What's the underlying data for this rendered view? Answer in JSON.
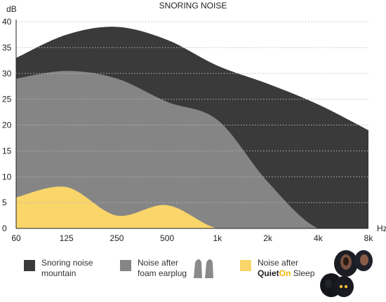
{
  "chart_data": {
    "type": "area",
    "title": "SNORING NOISE",
    "ylabel": "dB",
    "xlabel": "Hz",
    "x_categories": [
      "60",
      "125",
      "250",
      "500",
      "1k",
      "2k",
      "4k",
      "8k"
    ],
    "yticks": [
      "0",
      "5",
      "10",
      "15",
      "20",
      "25",
      "30",
      "35",
      "40"
    ],
    "ylim": [
      0,
      40
    ],
    "grid": true,
    "series": [
      {
        "name": "Snoring noise mountain",
        "color": "#3a3a3a",
        "x": [
          "60",
          "125",
          "250",
          "500",
          "1k",
          "2k",
          "4k",
          "8k"
        ],
        "values": [
          33,
          37.5,
          39,
          36.5,
          31.5,
          28,
          24,
          19
        ]
      },
      {
        "name": "Noise after foam earplug",
        "color": "#858585",
        "x": [
          "60",
          "125",
          "250",
          "500",
          "1k",
          "2k",
          "4k",
          "8k"
        ],
        "values": [
          29,
          30.5,
          29,
          24.5,
          21,
          9,
          0,
          0
        ]
      },
      {
        "name": "Noise after QuietOn Sleep",
        "color": "#f9d56a",
        "x": [
          "60",
          "125",
          "250",
          "500",
          "1k",
          "2k",
          "4k",
          "8k"
        ],
        "values": [
          6,
          8,
          2.5,
          4.5,
          0,
          0,
          0,
          0
        ]
      }
    ]
  },
  "legend": {
    "items": [
      {
        "lines": [
          "Snoring noise",
          "mountain"
        ]
      },
      {
        "lines": [
          "Noise after",
          "foam earplug"
        ]
      },
      {
        "lines": [
          "Noise after"
        ],
        "brand_quiet": "Quiet",
        "brand_on": "On",
        "suffix": "Sleep"
      }
    ],
    "brand_on_color": "#f0b400"
  },
  "icons": {
    "earplug": "foam-earplug-icon",
    "product": "quieton-earbuds-image"
  }
}
